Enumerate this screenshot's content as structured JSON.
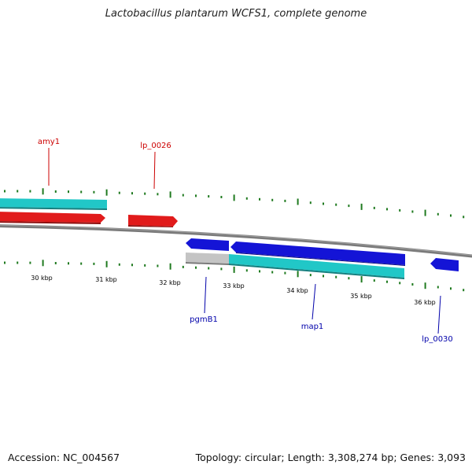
{
  "title": "Lactobacillus plantarum WCFS1, complete genome",
  "accession_text": "Accession: NC_004567",
  "summary_text": "Topology: circular; Length: 3,308,274 bp; Genes: 3,093",
  "colors": {
    "backbone": "#7a7a7a",
    "ticks": "#1f7a1f",
    "forward_cds": "#e11b1b",
    "forward_teal": "#21c7c7",
    "reverse_cds": "#1414d6",
    "reverse_teal": "#21c7c7",
    "gray_feature": "#bdbdbd",
    "forward_label": "#cc0000",
    "reverse_label": "#0000aa"
  },
  "scale_labels": [
    "30 kbp",
    "31 kbp",
    "32 kbp",
    "33 kbp",
    "34 kbp",
    "35 kbp",
    "36 kbp"
  ],
  "forward_labels": [
    "amy1",
    "lp_0026"
  ],
  "reverse_labels": [
    "pgmB1",
    "map1",
    "lp_0030"
  ]
}
